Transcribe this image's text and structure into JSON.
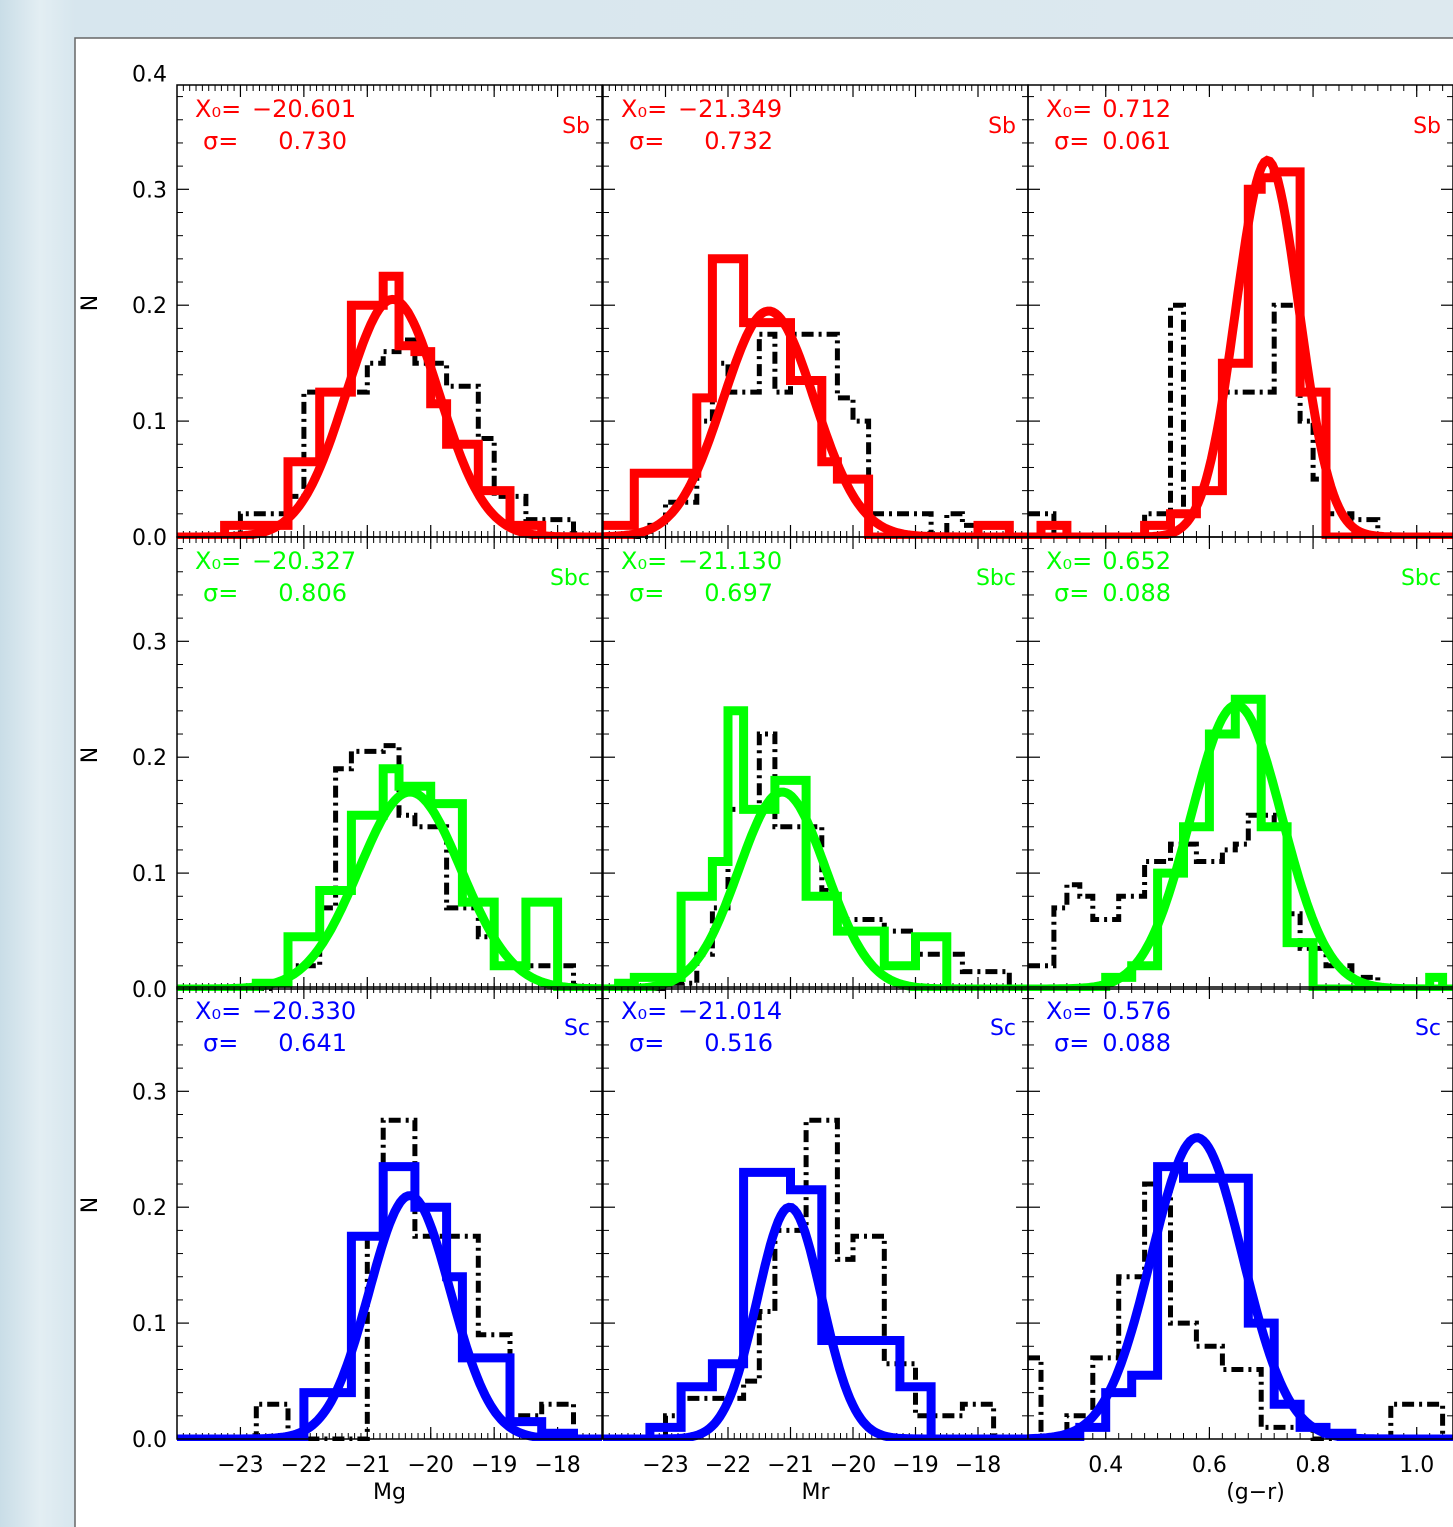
{
  "colors": {
    "Sb": "#ff0000",
    "Sbc": "#00ff00",
    "Sc": "#0000ff",
    "comparison": "#000000"
  },
  "ylabel": "N",
  "y_ticks": [
    "0.0",
    "0.1",
    "0.2",
    "0.3",
    "0.4"
  ],
  "rows": [
    {
      "type": "Sb",
      "color_key": "Sb"
    },
    {
      "type": "Sbc",
      "color_key": "Sbc"
    },
    {
      "type": "Sc",
      "color_key": "Sc"
    }
  ],
  "columns": [
    {
      "xlabel": "Mg",
      "xlim": [
        -24.0,
        -17.3
      ],
      "x_ticks": [
        "-23",
        "-22",
        "-21",
        "-20",
        "-19",
        "-18"
      ],
      "x_tick_values": [
        -23,
        -22,
        -21,
        -20,
        -19,
        -18
      ]
    },
    {
      "xlabel": "Mr",
      "xlim": [
        -24.0,
        -17.2
      ],
      "x_ticks": [
        "-23",
        "-22",
        "-21",
        "-20",
        "-19",
        "-18"
      ],
      "x_tick_values": [
        -23,
        -22,
        -21,
        -20,
        -19,
        -18
      ]
    },
    {
      "xlabel": "(g−r)",
      "xlim": [
        0.25,
        1.07
      ],
      "x_ticks": [
        "0.4",
        "0.6",
        "0.8",
        "1.0"
      ],
      "x_tick_values": [
        0.4,
        0.6,
        0.8,
        1.0
      ]
    }
  ],
  "chart_data": [
    {
      "type": "step-histogram",
      "row": 0,
      "col": 0,
      "label": "Sb",
      "annotation": {
        "x0_label": "X₀=",
        "x0": "−20.601",
        "sigma_label": "σ=",
        "sigma": "0.730"
      },
      "ylim": [
        0,
        0.4
      ],
      "gaussian": {
        "mu": -20.601,
        "sigma": 0.73,
        "amp": 0.205
      },
      "bins": [
        -24.0,
        -23.75,
        -23.5,
        -23.25,
        -23.0,
        -22.75,
        -22.5,
        -22.25,
        -22.0,
        -21.75,
        -21.5,
        -21.25,
        -21.0,
        -20.75,
        -20.5,
        -20.25,
        -20.0,
        -19.75,
        -19.5,
        -19.25,
        -19.0,
        -18.75,
        -18.5,
        -18.25,
        -18.0,
        -17.75,
        -17.5
      ],
      "series": [
        {
          "role": "fit-sample",
          "values": [
            0,
            0,
            0,
            0.01,
            0.01,
            0.01,
            0.01,
            0.065,
            0.065,
            0.125,
            0.125,
            0.2,
            0.2,
            0.225,
            0.165,
            0.16,
            0.115,
            0.08,
            0.08,
            0.04,
            0.04,
            0.01,
            0.01,
            0,
            0,
            0
          ]
        },
        {
          "role": "comparison",
          "values": [
            0,
            0,
            0,
            0,
            0.02,
            0.02,
            0.02,
            0.035,
            0.125,
            0.125,
            0.125,
            0.125,
            0.15,
            0.16,
            0.17,
            0.15,
            0.15,
            0.13,
            0.13,
            0.085,
            0.035,
            0.035,
            0.015,
            0.015,
            0.015,
            0
          ]
        }
      ]
    },
    {
      "type": "step-histogram",
      "row": 0,
      "col": 1,
      "label": "Sb",
      "annotation": {
        "x0_label": "X₀=",
        "x0": "−21.349",
        "sigma_label": "σ=",
        "sigma": "0.732"
      },
      "ylim": [
        0,
        0.4
      ],
      "gaussian": {
        "mu": -21.349,
        "sigma": 0.732,
        "amp": 0.195
      },
      "bins": [
        -24.0,
        -23.75,
        -23.5,
        -23.25,
        -23.0,
        -22.75,
        -22.5,
        -22.25,
        -22.0,
        -21.75,
        -21.5,
        -21.25,
        -21.0,
        -20.75,
        -20.5,
        -20.25,
        -20.0,
        -19.75,
        -19.5,
        -19.25,
        -19.0,
        -18.75,
        -18.5,
        -18.25,
        -18.0,
        -17.75,
        -17.5,
        -17.25
      ],
      "series": [
        {
          "role": "fit-sample",
          "values": [
            0.01,
            0.01,
            0.055,
            0.055,
            0.055,
            0.055,
            0.12,
            0.24,
            0.24,
            0.185,
            0.185,
            0.185,
            0.135,
            0.135,
            0.065,
            0.05,
            0.05,
            0,
            0,
            0,
            0,
            0,
            0,
            0,
            0.01,
            0.01,
            0
          ]
        },
        {
          "role": "comparison",
          "values": [
            0,
            0,
            0,
            0.01,
            0.03,
            0.03,
            0.1,
            0.15,
            0.125,
            0.125,
            0.175,
            0.125,
            0.175,
            0.175,
            0.175,
            0.12,
            0.1,
            0.02,
            0.02,
            0.02,
            0.02,
            0,
            0.02,
            0.01,
            0.01,
            0.01,
            0
          ]
        }
      ]
    },
    {
      "type": "step-histogram",
      "row": 0,
      "col": 2,
      "label": "Sb",
      "annotation": {
        "x0_label": "X₀=",
        "x0": "0.712",
        "sigma_label": "σ=",
        "sigma": "0.061"
      },
      "ylim": [
        0,
        0.4
      ],
      "gaussian": {
        "mu": 0.712,
        "sigma": 0.061,
        "amp": 0.325
      },
      "bins": [
        0.25,
        0.275,
        0.3,
        0.325,
        0.35,
        0.375,
        0.4,
        0.425,
        0.45,
        0.475,
        0.5,
        0.525,
        0.55,
        0.575,
        0.6,
        0.625,
        0.65,
        0.675,
        0.7,
        0.725,
        0.75,
        0.775,
        0.8,
        0.825,
        0.85,
        0.875,
        0.9,
        0.925,
        0.95,
        0.975,
        1.0,
        1.025,
        1.05,
        1.075
      ],
      "series": [
        {
          "role": "fit-sample",
          "values": [
            0,
            0.01,
            0.01,
            0,
            0,
            0,
            0,
            0,
            0,
            0.01,
            0.01,
            0.02,
            0.02,
            0.04,
            0.04,
            0.15,
            0.15,
            0.3,
            0.31,
            0.315,
            0.315,
            0.125,
            0.125,
            0,
            0,
            0,
            0,
            0,
            0,
            0,
            0,
            0,
            0
          ]
        },
        {
          "role": "comparison",
          "values": [
            0.02,
            0.02,
            0,
            0,
            0,
            0,
            0,
            0,
            0,
            0.02,
            0.02,
            0.2,
            0.02,
            0.04,
            0.04,
            0.125,
            0.125,
            0.125,
            0.125,
            0.2,
            0.2,
            0.1,
            0.05,
            0.02,
            0.02,
            0.015,
            0.015,
            0,
            0,
            0,
            0,
            0,
            0
          ]
        }
      ]
    },
    {
      "type": "step-histogram",
      "row": 1,
      "col": 0,
      "label": "Sbc",
      "annotation": {
        "x0_label": "X₀=",
        "x0": "−20.327",
        "sigma_label": "σ=",
        "sigma": "0.806"
      },
      "ylim": [
        0,
        0.4
      ],
      "gaussian": {
        "mu": -20.327,
        "sigma": 0.806,
        "amp": 0.17
      },
      "bins": [
        -24.0,
        -23.75,
        -23.5,
        -23.25,
        -23.0,
        -22.75,
        -22.5,
        -22.25,
        -22.0,
        -21.75,
        -21.5,
        -21.25,
        -21.0,
        -20.75,
        -20.5,
        -20.25,
        -20.0,
        -19.75,
        -19.5,
        -19.25,
        -19.0,
        -18.75,
        -18.5,
        -18.25,
        -18.0,
        -17.75,
        -17.5
      ],
      "series": [
        {
          "role": "fit-sample",
          "values": [
            0,
            0,
            0,
            0,
            0,
            0.005,
            0.005,
            0.045,
            0.045,
            0.085,
            0.085,
            0.15,
            0.15,
            0.19,
            0.175,
            0.175,
            0.16,
            0.16,
            0.075,
            0.075,
            0.02,
            0.02,
            0.075,
            0.075,
            0,
            0
          ]
        },
        {
          "role": "comparison",
          "values": [
            0,
            0,
            0,
            0,
            0,
            0,
            0.005,
            0.02,
            0.02,
            0.07,
            0.19,
            0.205,
            0.205,
            0.21,
            0.15,
            0.14,
            0.14,
            0.07,
            0.07,
            0.045,
            0.02,
            0.02,
            0.02,
            0.02,
            0.02,
            0
          ]
        }
      ]
    },
    {
      "type": "step-histogram",
      "row": 1,
      "col": 1,
      "label": "Sbc",
      "annotation": {
        "x0_label": "X₀=",
        "x0": "−21.130",
        "sigma_label": "σ=",
        "sigma": "0.697"
      },
      "ylim": [
        0,
        0.4
      ],
      "gaussian": {
        "mu": -21.13,
        "sigma": 0.697,
        "amp": 0.17
      },
      "bins": [
        -24.0,
        -23.75,
        -23.5,
        -23.25,
        -23.0,
        -22.75,
        -22.5,
        -22.25,
        -22.0,
        -21.75,
        -21.5,
        -21.25,
        -21.0,
        -20.75,
        -20.5,
        -20.25,
        -20.0,
        -19.75,
        -19.5,
        -19.25,
        -19.0,
        -18.75,
        -18.5,
        -18.25,
        -18.0,
        -17.75,
        -17.5,
        -17.25
      ],
      "series": [
        {
          "role": "fit-sample",
          "values": [
            0,
            0.005,
            0.01,
            0.01,
            0.01,
            0.08,
            0.08,
            0.11,
            0.24,
            0.155,
            0.155,
            0.18,
            0.18,
            0.08,
            0.08,
            0.05,
            0.05,
            0.05,
            0.02,
            0.02,
            0.045,
            0.045,
            0,
            0,
            0,
            0,
            0
          ]
        },
        {
          "role": "comparison",
          "values": [
            0,
            0,
            0,
            0,
            0.005,
            0.005,
            0.03,
            0.07,
            0.155,
            0.155,
            0.22,
            0.14,
            0.14,
            0.14,
            0.085,
            0.06,
            0.06,
            0.06,
            0.05,
            0.05,
            0.03,
            0.03,
            0.03,
            0.015,
            0.015,
            0.015,
            0
          ]
        }
      ]
    },
    {
      "type": "step-histogram",
      "row": 1,
      "col": 2,
      "label": "Sbc",
      "annotation": {
        "x0_label": "X₀=",
        "x0": "0.652",
        "sigma_label": "σ=",
        "sigma": "0.088"
      },
      "ylim": [
        0,
        0.4
      ],
      "gaussian": {
        "mu": 0.652,
        "sigma": 0.088,
        "amp": 0.245
      },
      "bins": [
        0.25,
        0.275,
        0.3,
        0.325,
        0.35,
        0.375,
        0.4,
        0.425,
        0.45,
        0.475,
        0.5,
        0.525,
        0.55,
        0.575,
        0.6,
        0.625,
        0.65,
        0.675,
        0.7,
        0.725,
        0.75,
        0.775,
        0.8,
        0.825,
        0.85,
        0.875,
        0.9,
        0.925,
        0.95,
        0.975,
        1.0,
        1.025,
        1.05,
        1.075
      ],
      "series": [
        {
          "role": "fit-sample",
          "values": [
            0,
            0,
            0,
            0,
            0,
            0,
            0.01,
            0.01,
            0.02,
            0.02,
            0.1,
            0.1,
            0.14,
            0.14,
            0.22,
            0.22,
            0.25,
            0.25,
            0.14,
            0.14,
            0.04,
            0.04,
            0,
            0,
            0,
            0,
            0,
            0,
            0,
            0,
            0,
            0.01,
            0
          ]
        },
        {
          "role": "comparison",
          "values": [
            0.02,
            0.02,
            0.07,
            0.09,
            0.08,
            0.06,
            0.06,
            0.08,
            0.08,
            0.11,
            0.11,
            0.125,
            0.125,
            0.11,
            0.11,
            0.12,
            0.125,
            0.15,
            0.15,
            0.14,
            0.065,
            0.035,
            0.035,
            0.02,
            0.02,
            0.01,
            0.01,
            0,
            0,
            0,
            0,
            0,
            0
          ]
        }
      ]
    },
    {
      "type": "step-histogram",
      "row": 2,
      "col": 0,
      "label": "Sc",
      "annotation": {
        "x0_label": "X₀=",
        "x0": "−20.330",
        "sigma_label": "σ=",
        "sigma": "0.641"
      },
      "ylim": [
        0,
        0.4
      ],
      "gaussian": {
        "mu": -20.33,
        "sigma": 0.641,
        "amp": 0.21
      },
      "bins": [
        -24.0,
        -23.75,
        -23.5,
        -23.25,
        -23.0,
        -22.75,
        -22.5,
        -22.25,
        -22.0,
        -21.75,
        -21.5,
        -21.25,
        -21.0,
        -20.75,
        -20.5,
        -20.25,
        -20.0,
        -19.75,
        -19.5,
        -19.25,
        -19.0,
        -18.75,
        -18.5,
        -18.25,
        -18.0,
        -17.75,
        -17.5
      ],
      "series": [
        {
          "role": "fit-sample",
          "values": [
            0,
            0,
            0,
            0,
            0,
            0,
            0,
            0,
            0.04,
            0.04,
            0.04,
            0.175,
            0.175,
            0.235,
            0.235,
            0.2,
            0.2,
            0.14,
            0.07,
            0.07,
            0.07,
            0.015,
            0.015,
            0.005,
            0.005,
            0
          ]
        },
        {
          "role": "comparison",
          "values": [
            0,
            0,
            0,
            0,
            0,
            0.03,
            0.03,
            0,
            0,
            0,
            0,
            0,
            0.175,
            0.275,
            0.275,
            0.175,
            0.175,
            0.175,
            0.175,
            0.09,
            0.09,
            0.02,
            0.02,
            0.03,
            0.03,
            0
          ]
        }
      ]
    },
    {
      "type": "step-histogram",
      "row": 2,
      "col": 1,
      "label": "Sc",
      "annotation": {
        "x0_label": "X₀=",
        "x0": "−21.014",
        "sigma_label": "σ=",
        "sigma": "0.516"
      },
      "ylim": [
        0,
        0.4
      ],
      "gaussian": {
        "mu": -21.014,
        "sigma": 0.516,
        "amp": 0.2
      },
      "bins": [
        -24.0,
        -23.75,
        -23.5,
        -23.25,
        -23.0,
        -22.75,
        -22.5,
        -22.25,
        -22.0,
        -21.75,
        -21.5,
        -21.25,
        -21.0,
        -20.75,
        -20.5,
        -20.25,
        -20.0,
        -19.75,
        -19.5,
        -19.25,
        -19.0,
        -18.75,
        -18.5,
        -18.25,
        -18.0,
        -17.75,
        -17.5,
        -17.25
      ],
      "series": [
        {
          "role": "fit-sample",
          "values": [
            0,
            0,
            0,
            0.01,
            0.01,
            0.045,
            0.045,
            0.065,
            0.065,
            0.23,
            0.23,
            0.23,
            0.215,
            0.215,
            0.085,
            0.085,
            0.085,
            0.085,
            0.085,
            0.045,
            0.045,
            0,
            0,
            0,
            0,
            0,
            0
          ]
        },
        {
          "role": "comparison",
          "values": [
            0,
            0,
            0,
            0,
            0.02,
            0.035,
            0.035,
            0.035,
            0.035,
            0.05,
            0.11,
            0.18,
            0.18,
            0.275,
            0.275,
            0.155,
            0.175,
            0.175,
            0.065,
            0.065,
            0.02,
            0.02,
            0.02,
            0.03,
            0.03,
            0,
            0
          ]
        }
      ]
    },
    {
      "type": "step-histogram",
      "row": 2,
      "col": 2,
      "label": "Sc",
      "annotation": {
        "x0_label": "X₀=",
        "x0": "0.576",
        "sigma_label": "σ=",
        "sigma": "0.088"
      },
      "ylim": [
        0,
        0.4
      ],
      "gaussian": {
        "mu": 0.576,
        "sigma": 0.088,
        "amp": 0.26
      },
      "bins": [
        0.25,
        0.275,
        0.3,
        0.325,
        0.35,
        0.375,
        0.4,
        0.425,
        0.45,
        0.475,
        0.5,
        0.525,
        0.55,
        0.575,
        0.6,
        0.625,
        0.65,
        0.675,
        0.7,
        0.725,
        0.75,
        0.775,
        0.8,
        0.825,
        0.85,
        0.875,
        0.9,
        0.925,
        0.95,
        0.975,
        1.0,
        1.025,
        1.05,
        1.075
      ],
      "series": [
        {
          "role": "fit-sample",
          "values": [
            0,
            0,
            0,
            0,
            0.01,
            0.01,
            0.04,
            0.04,
            0.055,
            0.055,
            0.235,
            0.235,
            0.225,
            0.225,
            0.225,
            0.225,
            0.225,
            0.1,
            0.1,
            0.03,
            0.03,
            0.01,
            0.01,
            0.005,
            0.005,
            0,
            0,
            0,
            0,
            0,
            0,
            0,
            0
          ]
        },
        {
          "role": "comparison",
          "values": [
            0.07,
            0,
            0,
            0.02,
            0.02,
            0.07,
            0.07,
            0.14,
            0.14,
            0.22,
            0.22,
            0.1,
            0.1,
            0.08,
            0.08,
            0.06,
            0.06,
            0.06,
            0.01,
            0.01,
            0.01,
            0.01,
            0,
            0,
            0,
            0,
            0,
            0,
            0.03,
            0.03,
            0.03,
            0.03,
            0
          ]
        }
      ]
    }
  ]
}
